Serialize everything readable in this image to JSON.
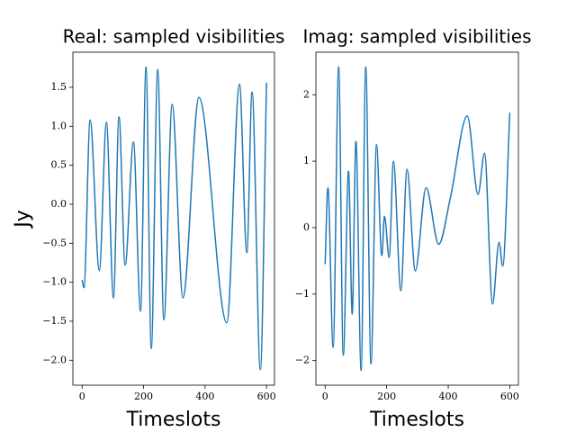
{
  "chart_data": [
    {
      "type": "line",
      "title": "Real: sampled visibilities",
      "xlabel": "Timeslots",
      "ylabel": "Jy",
      "x": [
        0,
        6,
        26,
        56,
        79,
        102,
        120,
        140,
        167,
        190,
        208,
        225,
        246,
        266,
        293,
        328,
        380,
        471,
        512,
        536,
        553,
        580,
        600
      ],
      "series": [
        {
          "color": "#1f77b4",
          "values": [
            -0.97,
            -1.07,
            1.08,
            -0.85,
            1.05,
            -1.2,
            1.12,
            -0.78,
            0.8,
            -1.37,
            1.76,
            -1.85,
            1.73,
            -1.48,
            1.28,
            -1.2,
            1.37,
            -1.52,
            1.54,
            -0.62,
            1.44,
            -2.12,
            1.56
          ]
        }
      ],
      "xlim": [
        -30,
        626
      ],
      "ylim": [
        -2.32,
        1.95
      ],
      "xticks": [
        0,
        200,
        400,
        600
      ],
      "yticks": [
        {
          "value": -2.0,
          "label": "−2.0"
        },
        {
          "value": -1.5,
          "label": "−1.5"
        },
        {
          "value": -1.0,
          "label": "−1.0"
        },
        {
          "value": -0.5,
          "label": "−0.5"
        },
        {
          "value": 0.0,
          "label": "0.0"
        },
        {
          "value": 0.5,
          "label": "0.5"
        },
        {
          "value": 1.0,
          "label": "1.0"
        },
        {
          "value": 1.5,
          "label": "1.5"
        }
      ]
    },
    {
      "type": "line",
      "title": "Imag: sampled visibilities",
      "xlabel": "Timeslots",
      "x": [
        0,
        9,
        26,
        44,
        59,
        76,
        88,
        100,
        117,
        132,
        149,
        167,
        184,
        193,
        208,
        222,
        246,
        266,
        293,
        328,
        369,
        407,
        462,
        497,
        518,
        544,
        565,
        577,
        600
      ],
      "series": [
        {
          "color": "#1f77b4",
          "values": [
            -0.55,
            0.6,
            -1.8,
            2.42,
            -1.92,
            0.85,
            -1.3,
            1.3,
            -2.15,
            2.42,
            -2.05,
            1.25,
            -0.42,
            0.17,
            -0.45,
            1.0,
            -0.95,
            0.88,
            -0.65,
            0.6,
            -0.25,
            0.45,
            1.68,
            0.5,
            1.12,
            -1.15,
            -0.22,
            -0.58,
            1.73
          ]
        }
      ],
      "xlim": [
        -30,
        628
      ],
      "ylim": [
        -2.37,
        2.64
      ],
      "xticks": [
        0,
        200,
        400,
        600
      ],
      "yticks": [
        {
          "value": -2,
          "label": "−2"
        },
        {
          "value": -1,
          "label": "−1"
        },
        0,
        1,
        2
      ]
    }
  ]
}
